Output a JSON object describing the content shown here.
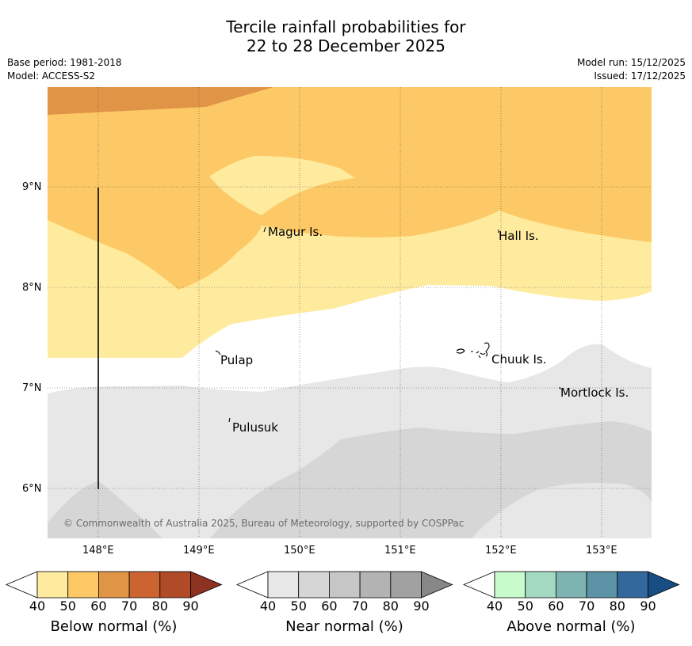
{
  "title": {
    "line1": "Tercile rainfall probabilities for",
    "line2": "22 to 28 December 2025"
  },
  "meta": {
    "base_period": "Base period: 1981-2018",
    "model": "Model: ACCESS-S2",
    "model_run": "Model run: 15/12/2025",
    "issued": "Issued: 17/12/2025"
  },
  "map": {
    "lat_labels": [
      "9°N",
      "8°N",
      "7°N",
      "6°N"
    ],
    "lon_labels": [
      "148°E",
      "149°E",
      "150°E",
      "151°E",
      "152°E",
      "153°E"
    ],
    "places": [
      "Magur Is.",
      "Hall Is.",
      "Pulap",
      "Chuuk Is.",
      "Mortlock Is.",
      "Pulusuk"
    ],
    "copyright": "© Commonwealth of Australia 2025, Bureau of Meteorology, supported by COSPPac"
  },
  "colorbars": [
    {
      "label": "Below normal (%)",
      "ticks": [
        "40",
        "50",
        "60",
        "70",
        "80",
        "90"
      ],
      "colors": [
        "#ffffff",
        "#feeb9e",
        "#fdc966",
        "#e09446",
        "#cc6431",
        "#b14a27",
        "#8d3120"
      ]
    },
    {
      "label": "Near normal (%)",
      "ticks": [
        "40",
        "50",
        "60",
        "70",
        "80",
        "90"
      ],
      "colors": [
        "#ffffff",
        "#e7e7e7",
        "#d6d6d6",
        "#c6c6c6",
        "#b3b3b3",
        "#a1a1a1",
        "#878787"
      ]
    },
    {
      "label": "Above normal (%)",
      "ticks": [
        "40",
        "50",
        "60",
        "70",
        "80",
        "90"
      ],
      "colors": [
        "#ffffff",
        "#c8fbcb",
        "#a3d9c0",
        "#7db3b0",
        "#5d93a6",
        "#33689c",
        "#174d83"
      ]
    }
  ]
}
